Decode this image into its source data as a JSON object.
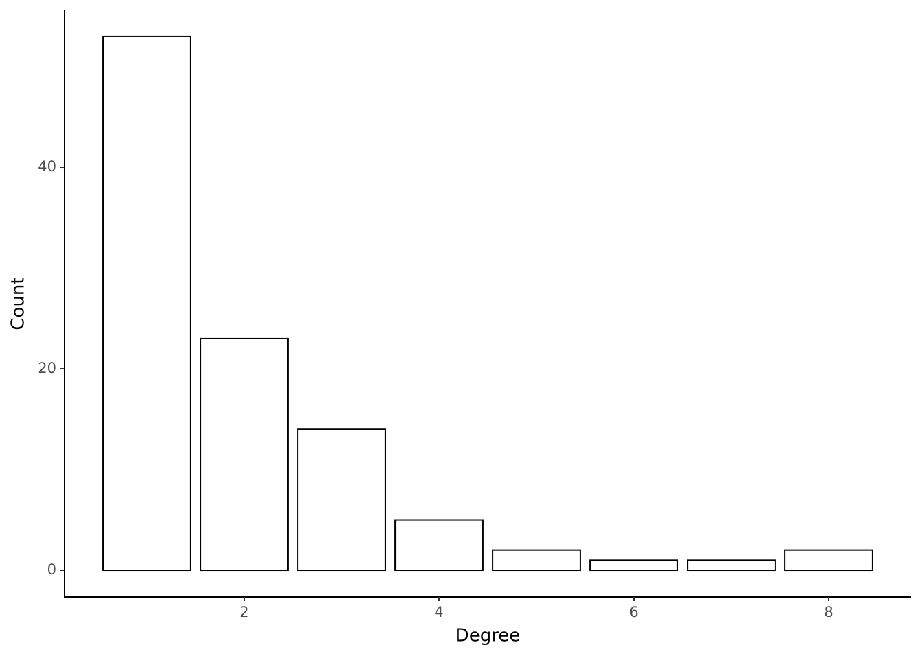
{
  "chart_data": {
    "type": "bar",
    "x": [
      1,
      2,
      3,
      4,
      5,
      6,
      7,
      8
    ],
    "values": [
      53,
      23,
      14,
      5,
      2,
      1,
      1,
      2
    ],
    "color": "#ffffff",
    "xlabel": "Degree",
    "ylabel": "Count",
    "xlim": [
      0.155,
      8.845
    ],
    "xticks": [
      2,
      4,
      6,
      8
    ],
    "ylim": [
      -2.65,
      55.58
    ],
    "yticks": [
      0,
      20,
      40
    ]
  }
}
